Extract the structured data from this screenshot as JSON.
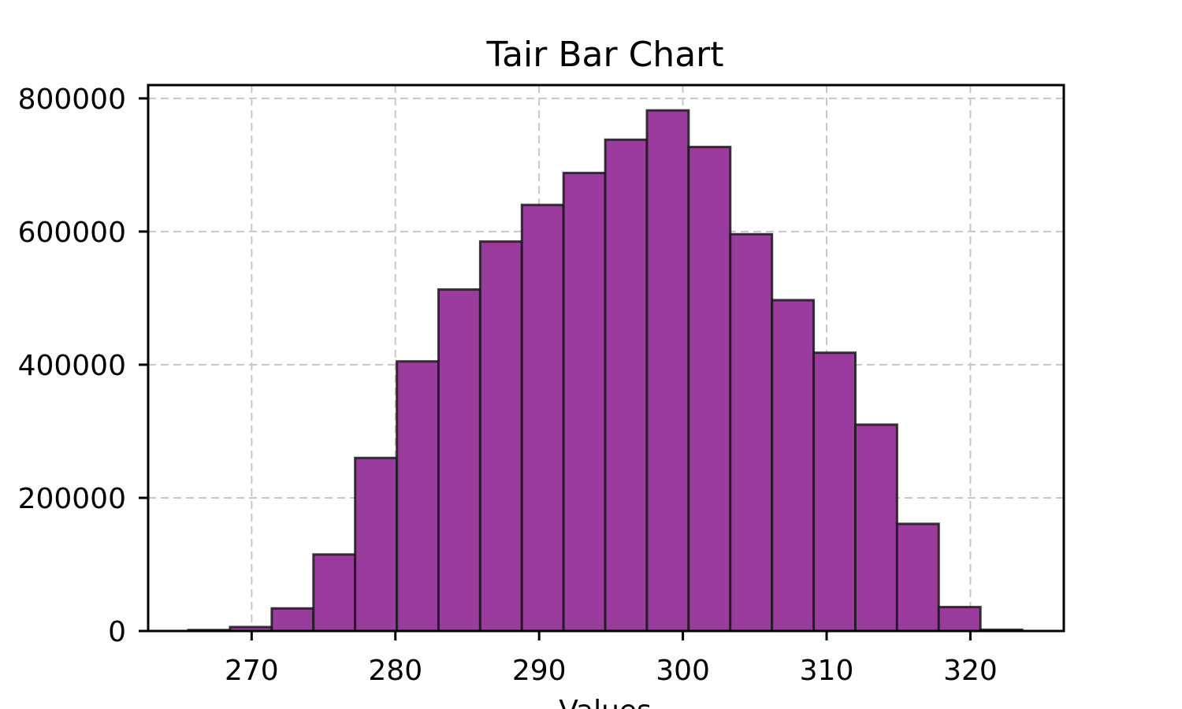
{
  "chart_data": {
    "type": "bar",
    "title": "Tair Bar Chart",
    "xlabel": "Values",
    "ylabel": "",
    "bar_color": "#9B3B9E",
    "edge_color": "#1A1A1A",
    "grid": true,
    "xlim": [
      262.8,
      326.5
    ],
    "ylim": [
      0,
      820000
    ],
    "xticks": [
      270,
      280,
      290,
      300,
      310,
      320
    ],
    "yticks": [
      0,
      200000,
      400000,
      600000,
      800000
    ],
    "bin_edges": [
      265.6,
      268.5,
      271.4,
      274.3,
      277.2,
      280.1,
      283.0,
      285.9,
      288.8,
      291.7,
      294.6,
      297.5,
      300.4,
      303.3,
      306.2,
      309.1,
      312.0,
      314.9,
      317.8,
      320.7,
      323.6
    ],
    "values": [
      1500,
      6000,
      34000,
      115000,
      260000,
      405000,
      513000,
      585000,
      640000,
      688000,
      738000,
      782000,
      727000,
      596000,
      497000,
      418000,
      310000,
      161000,
      36000,
      2000
    ]
  }
}
